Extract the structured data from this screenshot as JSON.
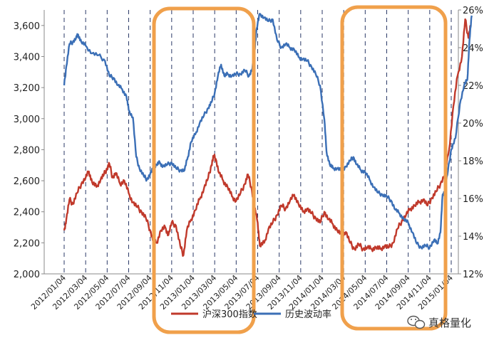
{
  "chart_data": {
    "type": "line",
    "title": "",
    "xlabel": "",
    "ylabel_left": "",
    "ylabel_right": "",
    "ylim_left": [
      2000,
      3700
    ],
    "ylim_right": [
      12,
      26
    ],
    "yticks_left": [
      "2,000",
      "2,200",
      "2,400",
      "2,600",
      "2,800",
      "3,000",
      "3,200",
      "3,400",
      "3,600"
    ],
    "yticks_right": [
      "12%",
      "14%",
      "16%",
      "18%",
      "20%",
      "22%",
      "24%",
      "26%"
    ],
    "x_ticks": [
      "2012/01/04",
      "2012/03/04",
      "2012/05/04",
      "2012/07/04",
      "2012/09/04",
      "2012/11/04",
      "2013/01/04",
      "2013/03/04",
      "2013/05/04",
      "2013/07/04",
      "2013/09/04",
      "2013/11/04",
      "2014/01/04",
      "2014/03/04",
      "2014/05/04",
      "2014/07/04",
      "2014/09/04",
      "2014/11/04",
      "2015/01/04"
    ],
    "grid": "vertical dashed",
    "legend_position": "bottom",
    "series": [
      {
        "name": "沪深300指数",
        "axis": "left",
        "color": "#c0392b",
        "points": [
          [
            0,
            2280
          ],
          [
            0.1,
            2350
          ],
          [
            0.25,
            2480
          ],
          [
            0.4,
            2450
          ],
          [
            0.6,
            2520
          ],
          [
            0.8,
            2580
          ],
          [
            1.0,
            2620
          ],
          [
            1.15,
            2660
          ],
          [
            1.3,
            2590
          ],
          [
            1.5,
            2560
          ],
          [
            1.7,
            2610
          ],
          [
            1.85,
            2640
          ],
          [
            2.0,
            2680
          ],
          [
            2.1,
            2710
          ],
          [
            2.25,
            2620
          ],
          [
            2.4,
            2650
          ],
          [
            2.6,
            2580
          ],
          [
            2.8,
            2600
          ],
          [
            3.0,
            2520
          ],
          [
            3.2,
            2460
          ],
          [
            3.4,
            2430
          ],
          [
            3.6,
            2400
          ],
          [
            3.8,
            2360
          ],
          [
            4.0,
            2280
          ],
          [
            4.15,
            2210
          ],
          [
            4.3,
            2200
          ],
          [
            4.5,
            2280
          ],
          [
            4.7,
            2300
          ],
          [
            4.85,
            2250
          ],
          [
            5.0,
            2330
          ],
          [
            5.2,
            2310
          ],
          [
            5.4,
            2180
          ],
          [
            5.55,
            2120
          ],
          [
            5.7,
            2280
          ],
          [
            5.9,
            2350
          ],
          [
            6.1,
            2410
          ],
          [
            6.3,
            2480
          ],
          [
            6.5,
            2550
          ],
          [
            6.7,
            2620
          ],
          [
            6.85,
            2700
          ],
          [
            6.95,
            2760
          ],
          [
            7.05,
            2740
          ],
          [
            7.2,
            2650
          ],
          [
            7.4,
            2600
          ],
          [
            7.6,
            2560
          ],
          [
            7.8,
            2500
          ],
          [
            8.0,
            2470
          ],
          [
            8.2,
            2520
          ],
          [
            8.4,
            2580
          ],
          [
            8.55,
            2640
          ],
          [
            8.7,
            2560
          ],
          [
            8.85,
            2430
          ],
          [
            9.0,
            2330
          ],
          [
            9.1,
            2180
          ],
          [
            9.3,
            2200
          ],
          [
            9.5,
            2290
          ],
          [
            9.7,
            2330
          ],
          [
            9.9,
            2380
          ],
          [
            10.1,
            2440
          ],
          [
            10.3,
            2420
          ],
          [
            10.5,
            2470
          ],
          [
            10.7,
            2510
          ],
          [
            10.9,
            2450
          ],
          [
            11.1,
            2400
          ],
          [
            11.3,
            2420
          ],
          [
            11.5,
            2390
          ],
          [
            11.7,
            2360
          ],
          [
            11.9,
            2330
          ],
          [
            12.1,
            2400
          ],
          [
            12.3,
            2350
          ],
          [
            12.5,
            2320
          ],
          [
            12.7,
            2280
          ],
          [
            12.9,
            2250
          ],
          [
            13.1,
            2270
          ],
          [
            13.3,
            2200
          ],
          [
            13.5,
            2160
          ],
          [
            13.7,
            2190
          ],
          [
            13.9,
            2160
          ],
          [
            14.1,
            2170
          ],
          [
            14.3,
            2160
          ],
          [
            14.5,
            2170
          ],
          [
            14.7,
            2160
          ],
          [
            14.9,
            2180
          ],
          [
            15.1,
            2170
          ],
          [
            15.3,
            2200
          ],
          [
            15.5,
            2290
          ],
          [
            15.7,
            2340
          ],
          [
            15.9,
            2380
          ],
          [
            16.1,
            2420
          ],
          [
            16.3,
            2440
          ],
          [
            16.5,
            2460
          ],
          [
            16.7,
            2480
          ],
          [
            16.9,
            2440
          ],
          [
            17.1,
            2490
          ],
          [
            17.3,
            2530
          ],
          [
            17.5,
            2580
          ],
          [
            17.7,
            2640
          ],
          [
            17.9,
            2800
          ],
          [
            18.1,
            3080
          ],
          [
            18.3,
            3280
          ],
          [
            18.5,
            3400
          ],
          [
            18.65,
            3640
          ],
          [
            18.8,
            3520
          ],
          [
            18.9,
            3600
          ]
        ]
      },
      {
        "name": "历史波动率",
        "axis": "right",
        "color": "#3b6fb6",
        "points": [
          [
            0,
            22.0
          ],
          [
            0.1,
            23.0
          ],
          [
            0.25,
            24.2
          ],
          [
            0.4,
            24.3
          ],
          [
            0.55,
            24.5
          ],
          [
            0.65,
            24.7
          ],
          [
            0.8,
            24.3
          ],
          [
            1.0,
            24.1
          ],
          [
            1.3,
            23.7
          ],
          [
            1.6,
            23.6
          ],
          [
            1.9,
            23.3
          ],
          [
            2.1,
            22.5
          ],
          [
            2.3,
            22.4
          ],
          [
            2.5,
            22.0
          ],
          [
            2.7,
            21.8
          ],
          [
            2.9,
            21.4
          ],
          [
            3.0,
            20.7
          ],
          [
            3.2,
            20.3
          ],
          [
            3.35,
            18.2
          ],
          [
            3.5,
            17.6
          ],
          [
            3.7,
            17.2
          ],
          [
            3.85,
            17.0
          ],
          [
            4.0,
            17.3
          ],
          [
            4.15,
            17.6
          ],
          [
            4.3,
            17.8
          ],
          [
            4.45,
            17.9
          ],
          [
            4.6,
            17.7
          ],
          [
            4.8,
            17.8
          ],
          [
            5.0,
            17.9
          ],
          [
            5.2,
            17.6
          ],
          [
            5.4,
            17.5
          ],
          [
            5.6,
            17.5
          ],
          [
            5.75,
            18.2
          ],
          [
            5.9,
            19.0
          ],
          [
            6.1,
            19.4
          ],
          [
            6.3,
            20.0
          ],
          [
            6.5,
            20.4
          ],
          [
            6.7,
            20.8
          ],
          [
            6.85,
            21.1
          ],
          [
            7.0,
            21.6
          ],
          [
            7.15,
            22.5
          ],
          [
            7.3,
            23.1
          ],
          [
            7.45,
            22.5
          ],
          [
            7.6,
            22.6
          ],
          [
            7.8,
            22.5
          ],
          [
            8.0,
            22.6
          ],
          [
            8.2,
            22.6
          ],
          [
            8.4,
            22.8
          ],
          [
            8.6,
            22.5
          ],
          [
            8.75,
            22.9
          ],
          [
            8.85,
            23.8
          ],
          [
            8.95,
            25.0
          ],
          [
            9.1,
            25.8
          ],
          [
            9.3,
            25.6
          ],
          [
            9.5,
            25.4
          ],
          [
            9.7,
            25.5
          ],
          [
            9.9,
            24.4
          ],
          [
            10.1,
            24.0
          ],
          [
            10.3,
            24.2
          ],
          [
            10.5,
            24.0
          ],
          [
            10.7,
            23.9
          ],
          [
            10.9,
            23.5
          ],
          [
            11.1,
            23.4
          ],
          [
            11.3,
            23.3
          ],
          [
            11.5,
            23.0
          ],
          [
            11.7,
            22.6
          ],
          [
            11.9,
            22.0
          ],
          [
            12.1,
            20.2
          ],
          [
            12.2,
            18.5
          ],
          [
            12.35,
            17.8
          ],
          [
            12.5,
            17.6
          ],
          [
            12.7,
            17.6
          ],
          [
            12.9,
            17.5
          ],
          [
            13.1,
            17.7
          ],
          [
            13.3,
            18.0
          ],
          [
            13.45,
            18.2
          ],
          [
            13.6,
            17.8
          ],
          [
            13.8,
            17.5
          ],
          [
            14.0,
            17.4
          ],
          [
            14.2,
            17.0
          ],
          [
            14.4,
            16.6
          ],
          [
            14.6,
            16.3
          ],
          [
            14.8,
            16.2
          ],
          [
            15.0,
            16.1
          ],
          [
            15.2,
            15.9
          ],
          [
            15.4,
            15.4
          ],
          [
            15.6,
            15.2
          ],
          [
            15.8,
            14.9
          ],
          [
            16.0,
            14.7
          ],
          [
            16.2,
            14.2
          ],
          [
            16.4,
            13.6
          ],
          [
            16.6,
            13.4
          ],
          [
            16.8,
            13.5
          ],
          [
            17.0,
            13.4
          ],
          [
            17.2,
            13.8
          ],
          [
            17.35,
            13.6
          ],
          [
            17.5,
            14.2
          ],
          [
            17.6,
            16.2
          ],
          [
            17.7,
            16.4
          ],
          [
            17.85,
            17.5
          ],
          [
            18.0,
            18.6
          ],
          [
            18.2,
            19.2
          ],
          [
            18.4,
            21.0
          ],
          [
            18.6,
            22.0
          ],
          [
            18.75,
            22.3
          ],
          [
            18.85,
            24.4
          ],
          [
            18.95,
            25.7
          ]
        ]
      }
    ]
  },
  "legend": {
    "series1_label": "沪深300指数",
    "series2_label": "历史波动率"
  },
  "watermark": {
    "text": "真格量化"
  },
  "colors": {
    "highlight_box": "#f0a04b",
    "grid": "#2b3a67",
    "axis": "#888888"
  }
}
